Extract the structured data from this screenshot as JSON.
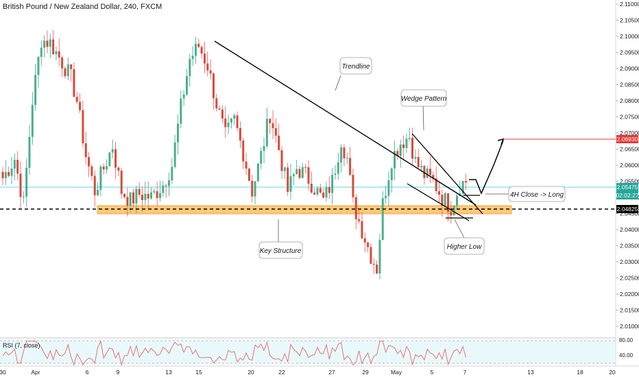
{
  "header": {
    "title": "British Pound / New Zealand Dollar, 240, FXCM"
  },
  "colors": {
    "up": "#26a69a",
    "down": "#ef5350",
    "up_body": "#4caf8a",
    "down_body": "#d84a3a",
    "zone": "#ffb74d",
    "cyan": "#00bcd4",
    "rsi_line": "#e57373",
    "target": "#e53935"
  },
  "price_axis": {
    "ticks": [
      "2.11000",
      "2.10500",
      "2.10000",
      "2.09500",
      "2.09000",
      "2.08500",
      "2.08000",
      "2.07500",
      "2.07000",
      "2.06500",
      "2.06000",
      "2.05500",
      "2.05000",
      "2.04500",
      "2.04000",
      "2.03500",
      "2.03000",
      "2.02500",
      "2.02000",
      "2.01500",
      "2.01000"
    ],
    "labels": {
      "target": "2.06930",
      "current": "2.05475",
      "countdown": "02:02:27",
      "support": "2.04825"
    }
  },
  "time_axis": {
    "ticks": [
      "30",
      "Apr",
      "6",
      "9",
      "13",
      "15",
      "20",
      "22",
      "27",
      "29",
      "May",
      "5",
      "7",
      "13",
      "18",
      "20"
    ]
  },
  "annotations": {
    "trendline": "Trendline",
    "wedge": "Wedge Pattern",
    "close_long": "4H Close -> Long",
    "key_structure": "Key Structure",
    "higher_low": "Higher Low"
  },
  "rsi": {
    "label": "RSI (7, close)",
    "upper": "80.00",
    "lower": "40.00"
  },
  "chart_data": {
    "type": "candlestick",
    "title": "British Pound / New Zealand Dollar, 240, FXCM",
    "ylim": [
      2.008,
      2.112
    ],
    "key_levels": {
      "support": 2.04825,
      "current": 2.05475,
      "target": 2.0693
    },
    "anchors": [
      [
        0,
        2.056
      ],
      [
        4,
        2.062
      ],
      [
        7,
        2.048
      ],
      [
        10,
        2.08
      ],
      [
        13,
        2.099
      ],
      [
        16,
        2.098
      ],
      [
        20,
        2.092
      ],
      [
        23,
        2.087
      ],
      [
        25,
        2.08
      ],
      [
        28,
        2.063
      ],
      [
        31,
        2.052
      ],
      [
        34,
        2.059
      ],
      [
        37,
        2.066
      ],
      [
        40,
        2.052
      ],
      [
        43,
        2.049
      ],
      [
        46,
        2.051
      ],
      [
        50,
        2.05
      ],
      [
        54,
        2.054
      ],
      [
        57,
        2.06
      ],
      [
        60,
        2.078
      ],
      [
        63,
        2.093
      ],
      [
        66,
        2.097
      ],
      [
        69,
        2.091
      ],
      [
        72,
        2.079
      ],
      [
        75,
        2.069
      ],
      [
        78,
        2.074
      ],
      [
        81,
        2.064
      ],
      [
        84,
        2.052
      ],
      [
        87,
        2.063
      ],
      [
        90,
        2.076
      ],
      [
        93,
        2.065
      ],
      [
        96,
        2.052
      ],
      [
        99,
        2.059
      ],
      [
        102,
        2.057
      ],
      [
        105,
        2.053
      ],
      [
        108,
        2.049
      ],
      [
        111,
        2.055
      ],
      [
        114,
        2.068
      ],
      [
        116,
        2.062
      ],
      [
        118,
        2.048
      ],
      [
        121,
        2.04
      ],
      [
        124,
        2.032
      ],
      [
        126,
        2.028
      ],
      [
        128,
        2.048
      ],
      [
        131,
        2.062
      ],
      [
        134,
        2.067
      ],
      [
        137,
        2.069
      ],
      [
        139,
        2.061
      ],
      [
        142,
        2.057
      ],
      [
        145,
        2.055
      ],
      [
        148,
        2.05
      ],
      [
        151,
        2.047
      ],
      [
        154,
        2.054
      ],
      [
        156,
        2.055
      ]
    ],
    "rsi_range": [
      0,
      100
    ]
  }
}
